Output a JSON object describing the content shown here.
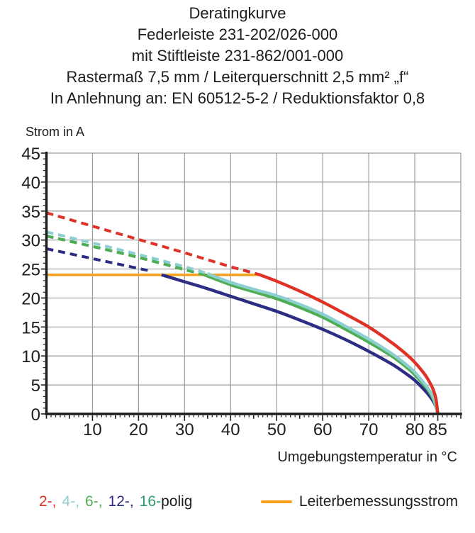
{
  "title_lines": [
    "Deratingkurve",
    "Federleiste 231-202/026-000",
    "mit Stiftleiste 231-862/001-000",
    "Rastermaß 7,5 mm / Leiterquerschnitt 2,5 mm² „f“",
    "In Anlehnung an: EN 60512-5-2 / Reduktionsfaktor 0,8"
  ],
  "chart_data": {
    "type": "line",
    "ylabel": "Strom in A",
    "xlabel": "Umgebungstemperatur in °C",
    "xlim": [
      0,
      90
    ],
    "ylim": [
      0,
      45
    ],
    "xticks": [
      10,
      20,
      30,
      40,
      50,
      60,
      70,
      80,
      85
    ],
    "yticks": [
      0,
      5,
      10,
      15,
      20,
      25,
      30,
      35,
      40,
      45
    ],
    "grid": true,
    "grid_x_step": 10,
    "grid_y_step": 5,
    "grid_color": "#9b9b9b",
    "axis_color": "#1d1d1b",
    "series": [
      {
        "name": "2-polig",
        "color": "#e03127",
        "dashed": [
          [
            0,
            34.7
          ],
          [
            10,
            32.4
          ],
          [
            20,
            30.1
          ],
          [
            30,
            27.8
          ],
          [
            40,
            25.4
          ],
          [
            46,
            24.1
          ]
        ],
        "solid": [
          [
            46,
            24.1
          ],
          [
            50,
            22.9
          ],
          [
            55,
            21.2
          ],
          [
            60,
            19.3
          ],
          [
            65,
            17.2
          ],
          [
            70,
            15.0
          ],
          [
            75,
            12.3
          ],
          [
            78,
            10.4
          ],
          [
            80,
            8.9
          ],
          [
            82,
            7.0
          ],
          [
            83,
            5.8
          ],
          [
            84,
            4.2
          ],
          [
            84.6,
            2.6
          ],
          [
            85,
            0
          ]
        ]
      },
      {
        "name": "4-polig",
        "color": "#8ccfd0",
        "dashed": [
          [
            0,
            31.4
          ],
          [
            10,
            29.5
          ],
          [
            20,
            27.5
          ],
          [
            30,
            25.4
          ],
          [
            35,
            24.2
          ]
        ],
        "solid": [
          [
            35,
            24.2
          ],
          [
            40,
            22.7
          ],
          [
            45,
            21.5
          ],
          [
            50,
            20.4
          ],
          [
            55,
            18.9
          ],
          [
            60,
            17.2
          ],
          [
            65,
            15.1
          ],
          [
            70,
            12.9
          ],
          [
            75,
            10.4
          ],
          [
            78,
            8.6
          ],
          [
            80,
            7.2
          ],
          [
            82,
            5.3
          ],
          [
            83,
            4.3
          ],
          [
            84,
            2.9
          ],
          [
            84.7,
            1.2
          ],
          [
            85,
            0
          ]
        ]
      },
      {
        "name": "6-polig",
        "color": "#4fae51",
        "dashed": [
          [
            0,
            30.7
          ],
          [
            10,
            28.9
          ],
          [
            20,
            27.0
          ],
          [
            30,
            24.9
          ],
          [
            34,
            24.1
          ]
        ],
        "solid": [
          [
            34,
            24.1
          ],
          [
            40,
            22.3
          ],
          [
            45,
            21.1
          ],
          [
            50,
            19.9
          ],
          [
            55,
            18.4
          ],
          [
            60,
            16.7
          ],
          [
            65,
            14.6
          ],
          [
            70,
            12.4
          ],
          [
            75,
            10.0
          ],
          [
            78,
            8.2
          ],
          [
            80,
            6.8
          ],
          [
            82,
            5.0
          ],
          [
            83,
            4.0
          ],
          [
            84,
            2.6
          ],
          [
            84.7,
            1.0
          ],
          [
            85,
            0
          ]
        ]
      },
      {
        "name": "12-polig",
        "color": "#2d2e83",
        "dashed": [
          [
            0,
            28.5
          ],
          [
            10,
            26.8
          ],
          [
            20,
            25.1
          ],
          [
            23,
            24.6
          ]
        ],
        "solid": [
          [
            25,
            24.0
          ],
          [
            30,
            22.8
          ],
          [
            35,
            21.6
          ],
          [
            40,
            20.3
          ],
          [
            45,
            19.0
          ],
          [
            50,
            17.7
          ],
          [
            55,
            16.2
          ],
          [
            60,
            14.6
          ],
          [
            65,
            12.8
          ],
          [
            70,
            10.8
          ],
          [
            75,
            8.6
          ],
          [
            78,
            7.0
          ],
          [
            80,
            5.8
          ],
          [
            82,
            4.2
          ],
          [
            83,
            3.3
          ],
          [
            84,
            2.2
          ],
          [
            84.8,
            0.9
          ],
          [
            85,
            0
          ]
        ]
      },
      {
        "name": "16-polig",
        "color": "#2f9a68",
        "dashed": [
          [
            0,
            30.7
          ],
          [
            10,
            28.9
          ],
          [
            20,
            27.0
          ],
          [
            30,
            24.9
          ],
          [
            34,
            24.1
          ]
        ],
        "solid": [
          [
            34,
            24.1
          ],
          [
            40,
            22.3
          ],
          [
            45,
            21.1
          ],
          [
            50,
            19.9
          ],
          [
            55,
            18.4
          ],
          [
            60,
            16.7
          ],
          [
            65,
            14.6
          ],
          [
            70,
            12.4
          ],
          [
            75,
            10.0
          ],
          [
            78,
            8.2
          ],
          [
            80,
            6.8
          ],
          [
            82,
            5.0
          ],
          [
            83,
            4.0
          ],
          [
            84,
            2.6
          ],
          [
            84.7,
            1.0
          ],
          [
            85,
            0
          ]
        ]
      }
    ],
    "rated_current": {
      "label": "Leiterbemessungsstrom",
      "value": 24,
      "from": 0,
      "to": 46,
      "color": "#f7a11a"
    }
  },
  "legend": {
    "items": [
      {
        "label": "2-,",
        "color": "#e03127"
      },
      {
        "label": "4-,",
        "color": "#8ccfd0"
      },
      {
        "label": "6-,",
        "color": "#4fae51"
      },
      {
        "label": "12-,",
        "color": "#2d2e83"
      },
      {
        "label": "16-",
        "color": "#2f9a68"
      }
    ],
    "suffix": "polig",
    "rated_label": "Leiterbemessungsstrom",
    "rated_color": "#f7a11a"
  }
}
